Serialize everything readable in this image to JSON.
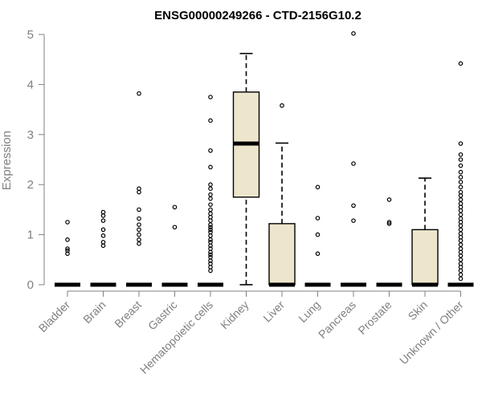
{
  "chart_data": {
    "type": "boxplot",
    "title": "ENSG00000249266 - CTD-2156G10.2",
    "xlabel": "",
    "ylabel": "Expression",
    "ylim": [
      0,
      5
    ],
    "yticks": [
      0,
      1,
      2,
      3,
      4,
      5
    ],
    "grid": false,
    "legend": "none",
    "colors": {
      "box_fill": "#ede6cc",
      "line": "#000000",
      "axis": "#808080",
      "text": "#808080"
    },
    "categories": [
      "Bladder",
      "Brain",
      "Breast",
      "Gastric",
      "Hematopoietic cells",
      "Kidney",
      "Liver",
      "Lung",
      "Pancreas",
      "Prostate",
      "Skin",
      "Unknown / Other"
    ],
    "boxes": [
      {
        "category": "Bladder",
        "min": 0,
        "q1": 0,
        "median": 0,
        "q3": 0,
        "max": 0,
        "outliers": [
          0.62,
          0.68,
          0.72,
          0.9,
          1.25
        ]
      },
      {
        "category": "Brain",
        "min": 0,
        "q1": 0,
        "median": 0,
        "q3": 0,
        "max": 0,
        "outliers": [
          0.78,
          0.85,
          0.98,
          1.1,
          1.28,
          1.38,
          1.45
        ]
      },
      {
        "category": "Breast",
        "min": 0,
        "q1": 0,
        "median": 0,
        "q3": 0,
        "max": 0,
        "outliers": [
          0.82,
          0.9,
          1.0,
          1.1,
          1.2,
          1.32,
          1.5,
          1.85,
          1.92,
          3.82
        ]
      },
      {
        "category": "Gastric",
        "min": 0,
        "q1": 0,
        "median": 0,
        "q3": 0,
        "max": 0,
        "outliers": [
          1.15,
          1.55
        ]
      },
      {
        "category": "Hematopoietic cells",
        "min": 0,
        "q1": 0,
        "median": 0,
        "q3": 0,
        "max": 0,
        "outliers": [
          0.28,
          0.35,
          0.42,
          0.48,
          0.55,
          0.6,
          0.65,
          0.72,
          0.78,
          0.85,
          0.9,
          0.98,
          1.05,
          1.1,
          1.15,
          1.2,
          1.28,
          1.35,
          1.42,
          1.5,
          1.6,
          1.72,
          1.8,
          1.92,
          2.0,
          2.35,
          2.68,
          3.28,
          3.75
        ]
      },
      {
        "category": "Kidney",
        "min": 0,
        "q1": 1.75,
        "median": 2.82,
        "q3": 3.85,
        "max": 4.62,
        "outliers": []
      },
      {
        "category": "Liver",
        "min": 0,
        "q1": 0,
        "median": 0,
        "q3": 1.22,
        "max": 2.83,
        "outliers": [
          3.58
        ]
      },
      {
        "category": "Lung",
        "min": 0,
        "q1": 0,
        "median": 0,
        "q3": 0,
        "max": 0,
        "outliers": [
          0.62,
          1.0,
          1.33,
          1.95
        ]
      },
      {
        "category": "Pancreas",
        "min": 0,
        "q1": 0,
        "median": 0,
        "q3": 0,
        "max": 0,
        "outliers": [
          1.28,
          1.58,
          2.42,
          5.02
        ]
      },
      {
        "category": "Prostate",
        "min": 0,
        "q1": 0,
        "median": 0,
        "q3": 0,
        "max": 0,
        "outliers": [
          1.22,
          1.25,
          1.7
        ]
      },
      {
        "category": "Skin",
        "min": 0,
        "q1": 0,
        "median": 0,
        "q3": 1.1,
        "max": 2.13,
        "outliers": []
      },
      {
        "category": "Unknown / Other",
        "min": 0,
        "q1": 0,
        "median": 0,
        "q3": 0,
        "max": 0,
        "outliers": [
          0.12,
          0.2,
          0.28,
          0.35,
          0.42,
          0.5,
          0.58,
          0.65,
          0.72,
          0.8,
          0.88,
          0.95,
          1.02,
          1.1,
          1.18,
          1.25,
          1.32,
          1.4,
          1.48,
          1.55,
          1.62,
          1.7,
          1.78,
          1.85,
          1.95,
          2.05,
          2.15,
          2.25,
          2.38,
          2.5,
          2.6,
          2.82,
          4.42
        ]
      }
    ]
  }
}
